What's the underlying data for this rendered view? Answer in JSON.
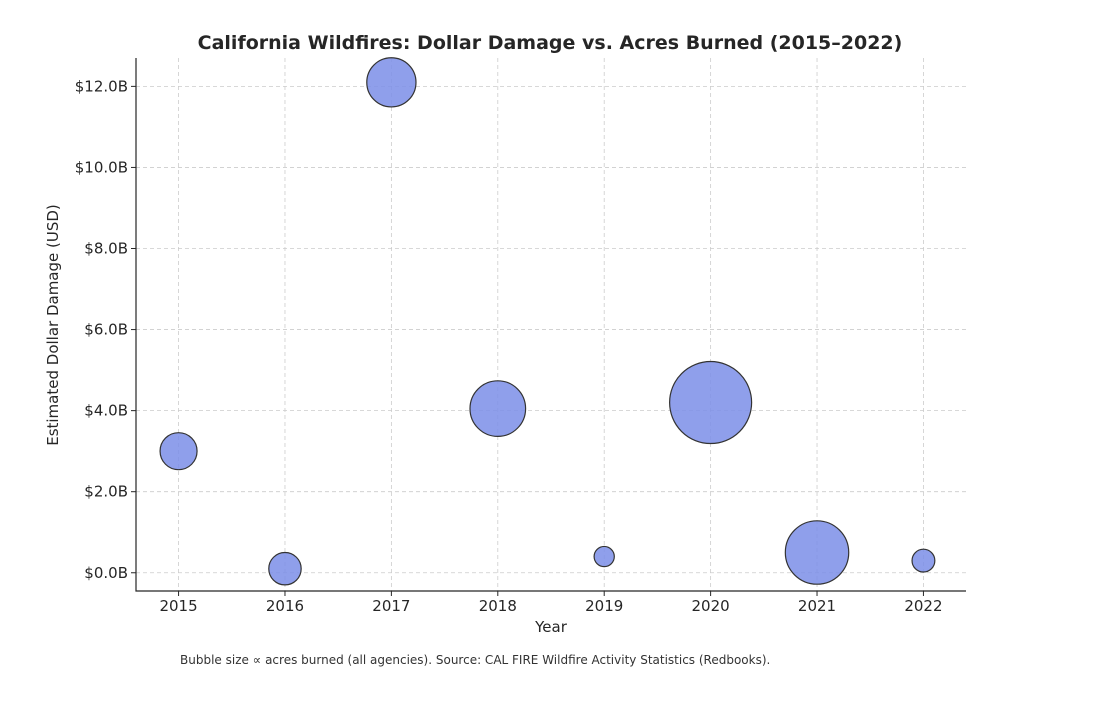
{
  "chart_data": {
    "type": "scatter",
    "title": "California Wildfires: Dollar Damage vs. Acres Burned (2015–2022)",
    "xlabel": "Year",
    "ylabel": "Estimated Dollar Damage (USD)",
    "x": [
      2015,
      2016,
      2017,
      2018,
      2019,
      2020,
      2021,
      2022
    ],
    "x_tick_labels": [
      "2015",
      "2016",
      "2017",
      "2018",
      "2019",
      "2020",
      "2021",
      "2022"
    ],
    "y": [
      3.0,
      0.1,
      12.1,
      4.05,
      0.4,
      4.2,
      0.5,
      0.3
    ],
    "y_unit": "billion USD",
    "size": [
      880000,
      670000,
      1550000,
      1980000,
      260000,
      4300000,
      2570000,
      330000
    ],
    "size_label": "acres burned",
    "y_ticks": [
      0,
      2,
      4,
      6,
      8,
      10,
      12
    ],
    "y_tick_labels": [
      "$0.0B",
      "$2.0B",
      "$4.0B",
      "$6.0B",
      "$8.0B",
      "$10.0B",
      "$12.0B"
    ],
    "xlim": [
      2014.6,
      2022.4
    ],
    "ylim": [
      -0.45,
      12.7
    ],
    "grid": true,
    "bubble_color": "#7b8ee8",
    "caption": "Bubble size ∝ acres burned (all agencies). Source: CAL FIRE Wildfire Activity Statistics (Redbooks)."
  }
}
